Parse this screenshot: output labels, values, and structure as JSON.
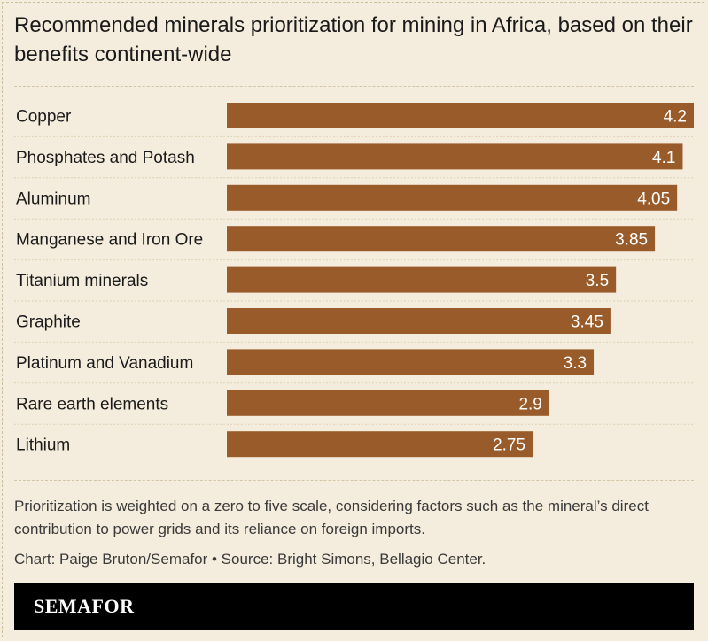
{
  "title": "Recommended minerals prioritization for mining in Africa, based on their benefits continent-wide",
  "note": "Prioritization is weighted on a zero to five scale, considering factors such as the mineral’s direct contribution to power grids and its reliance on foreign imports.",
  "credit": "Chart: Paige Bruton/Semafor • Source: Bright Simons, Bellagio Center.",
  "brand": "SEMAFOR",
  "colors": {
    "bar": "#9a5b2b",
    "background": "#f4ecdc",
    "brand_bar": "#000000"
  },
  "chart_data": {
    "type": "bar",
    "orientation": "horizontal",
    "categories": [
      "Copper",
      "Phosphates and Potash",
      "Aluminum",
      "Manganese and Iron Ore",
      "Titanium minerals",
      "Graphite",
      "Platinum and Vanadium",
      "Rare earth elements",
      "Lithium"
    ],
    "values": [
      4.2,
      4.1,
      4.05,
      3.85,
      3.5,
      3.45,
      3.3,
      2.9,
      2.75
    ],
    "value_labels": [
      "4.2",
      "4.1",
      "4.05",
      "3.85",
      "3.5",
      "3.45",
      "3.3",
      "2.9",
      "2.75"
    ],
    "xlim": [
      0,
      4.2
    ],
    "grid": false,
    "legend": "none"
  }
}
